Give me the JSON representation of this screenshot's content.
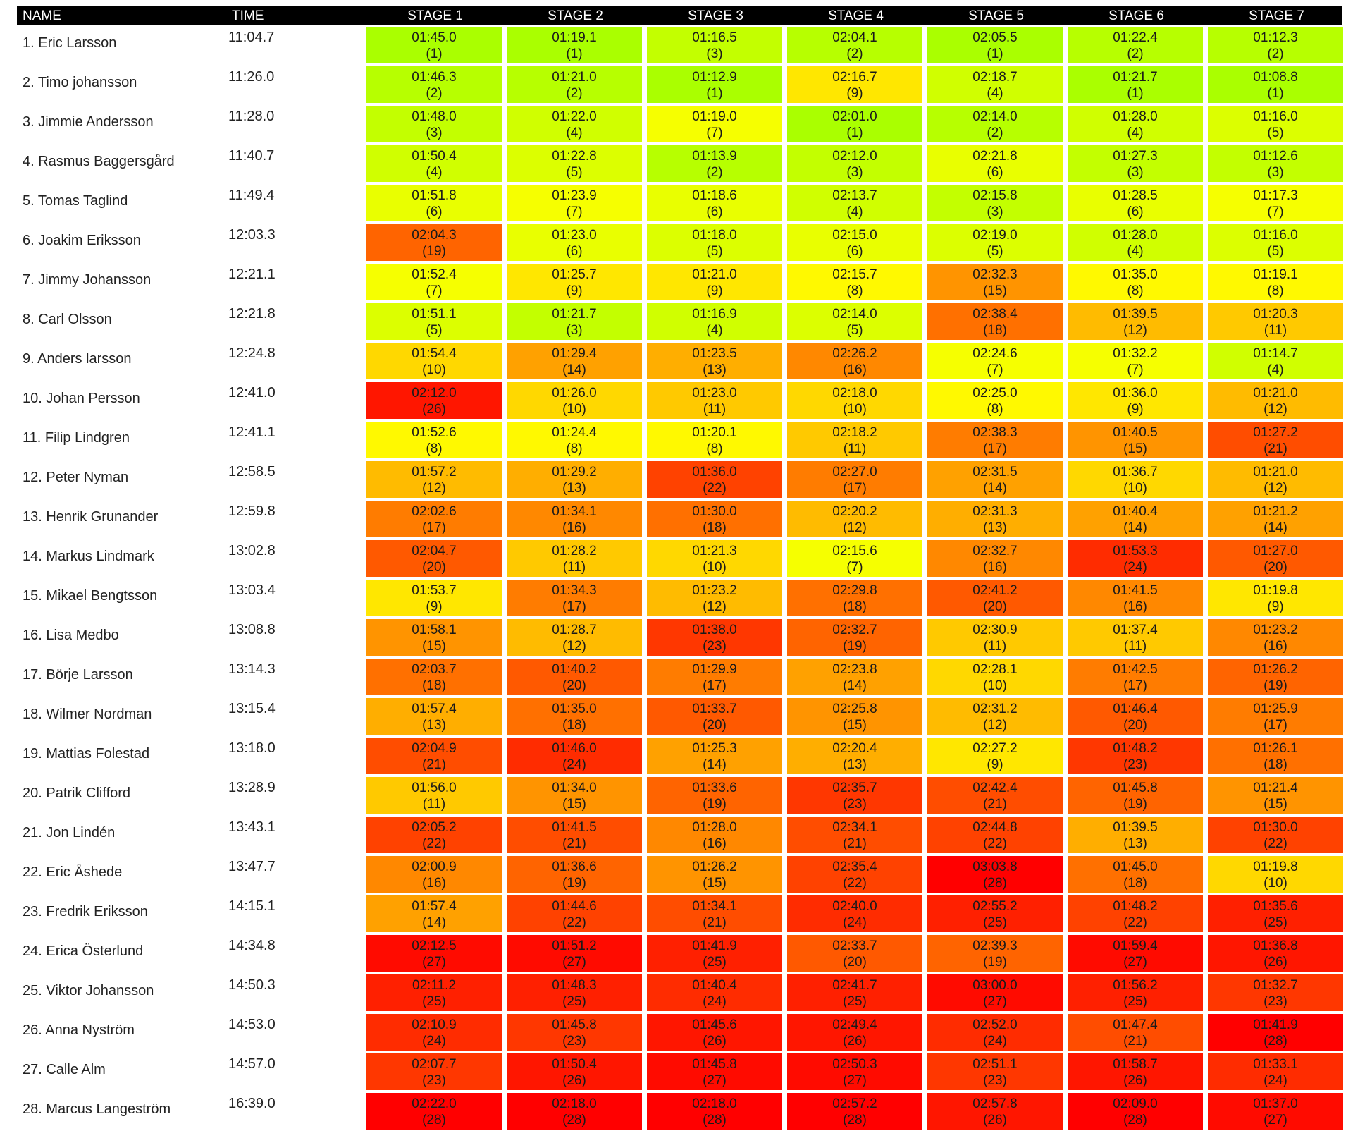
{
  "chart_data": {
    "type": "table",
    "columns": [
      "NAME",
      "TIME",
      "STAGE 1",
      "STAGE 2",
      "STAGE 3",
      "STAGE 4",
      "STAGE 5",
      "STAGE 6",
      "STAGE 7"
    ],
    "color_scale": {
      "best": "#aaff00",
      "mid": "#ffff00",
      "worst": "#ff0000"
    },
    "rows": [
      {
        "name": "1. Eric Larsson",
        "time": "11:04.7",
        "stages": [
          {
            "t": "01:45.0",
            "r": 1
          },
          {
            "t": "01:19.1",
            "r": 1
          },
          {
            "t": "01:16.5",
            "r": 3
          },
          {
            "t": "02:04.1",
            "r": 2
          },
          {
            "t": "02:05.5",
            "r": 1
          },
          {
            "t": "01:22.4",
            "r": 2
          },
          {
            "t": "01:12.3",
            "r": 2
          }
        ]
      },
      {
        "name": "2. Timo johansson",
        "time": "11:26.0",
        "stages": [
          {
            "t": "01:46.3",
            "r": 2
          },
          {
            "t": "01:21.0",
            "r": 2
          },
          {
            "t": "01:12.9",
            "r": 1
          },
          {
            "t": "02:16.7",
            "r": 9
          },
          {
            "t": "02:18.7",
            "r": 4
          },
          {
            "t": "01:21.7",
            "r": 1
          },
          {
            "t": "01:08.8",
            "r": 1
          }
        ]
      },
      {
        "name": "3. Jimmie Andersson",
        "time": "11:28.0",
        "stages": [
          {
            "t": "01:48.0",
            "r": 3
          },
          {
            "t": "01:22.0",
            "r": 4
          },
          {
            "t": "01:19.0",
            "r": 7
          },
          {
            "t": "02:01.0",
            "r": 1
          },
          {
            "t": "02:14.0",
            "r": 2
          },
          {
            "t": "01:28.0",
            "r": 4
          },
          {
            "t": "01:16.0",
            "r": 5
          }
        ]
      },
      {
        "name": "4. Rasmus Baggersgård",
        "time": "11:40.7",
        "stages": [
          {
            "t": "01:50.4",
            "r": 4
          },
          {
            "t": "01:22.8",
            "r": 5
          },
          {
            "t": "01:13.9",
            "r": 2
          },
          {
            "t": "02:12.0",
            "r": 3
          },
          {
            "t": "02:21.8",
            "r": 6
          },
          {
            "t": "01:27.3",
            "r": 3
          },
          {
            "t": "01:12.6",
            "r": 3
          }
        ]
      },
      {
        "name": "5. Tomas Taglind",
        "time": "11:49.4",
        "stages": [
          {
            "t": "01:51.8",
            "r": 6
          },
          {
            "t": "01:23.9",
            "r": 7
          },
          {
            "t": "01:18.6",
            "r": 6
          },
          {
            "t": "02:13.7",
            "r": 4
          },
          {
            "t": "02:15.8",
            "r": 3
          },
          {
            "t": "01:28.5",
            "r": 6
          },
          {
            "t": "01:17.3",
            "r": 7
          }
        ]
      },
      {
        "name": "6. Joakim Eriksson",
        "time": "12:03.3",
        "stages": [
          {
            "t": "02:04.3",
            "r": 19
          },
          {
            "t": "01:23.0",
            "r": 6
          },
          {
            "t": "01:18.0",
            "r": 5
          },
          {
            "t": "02:15.0",
            "r": 6
          },
          {
            "t": "02:19.0",
            "r": 5
          },
          {
            "t": "01:28.0",
            "r": 4
          },
          {
            "t": "01:16.0",
            "r": 5
          }
        ]
      },
      {
        "name": "7. Jimmy Johansson",
        "time": "12:21.1",
        "stages": [
          {
            "t": "01:52.4",
            "r": 7
          },
          {
            "t": "01:25.7",
            "r": 9
          },
          {
            "t": "01:21.0",
            "r": 9
          },
          {
            "t": "02:15.7",
            "r": 8
          },
          {
            "t": "02:32.3",
            "r": 15
          },
          {
            "t": "01:35.0",
            "r": 8
          },
          {
            "t": "01:19.1",
            "r": 8
          }
        ]
      },
      {
        "name": "8. Carl Olsson",
        "time": "12:21.8",
        "stages": [
          {
            "t": "01:51.1",
            "r": 5
          },
          {
            "t": "01:21.7",
            "r": 3
          },
          {
            "t": "01:16.9",
            "r": 4
          },
          {
            "t": "02:14.0",
            "r": 5
          },
          {
            "t": "02:38.4",
            "r": 18
          },
          {
            "t": "01:39.5",
            "r": 12
          },
          {
            "t": "01:20.3",
            "r": 11
          }
        ]
      },
      {
        "name": "9. Anders larsson",
        "time": "12:24.8",
        "stages": [
          {
            "t": "01:54.4",
            "r": 10
          },
          {
            "t": "01:29.4",
            "r": 14
          },
          {
            "t": "01:23.5",
            "r": 13
          },
          {
            "t": "02:26.2",
            "r": 16
          },
          {
            "t": "02:24.6",
            "r": 7
          },
          {
            "t": "01:32.2",
            "r": 7
          },
          {
            "t": "01:14.7",
            "r": 4
          }
        ]
      },
      {
        "name": "10. Johan Persson",
        "time": "12:41.0",
        "stages": [
          {
            "t": "02:12.0",
            "r": 26
          },
          {
            "t": "01:26.0",
            "r": 10
          },
          {
            "t": "01:23.0",
            "r": 11
          },
          {
            "t": "02:18.0",
            "r": 10
          },
          {
            "t": "02:25.0",
            "r": 8
          },
          {
            "t": "01:36.0",
            "r": 9
          },
          {
            "t": "01:21.0",
            "r": 12
          }
        ]
      },
      {
        "name": "11. Filip Lindgren",
        "time": "12:41.1",
        "stages": [
          {
            "t": "01:52.6",
            "r": 8
          },
          {
            "t": "01:24.4",
            "r": 8
          },
          {
            "t": "01:20.1",
            "r": 8
          },
          {
            "t": "02:18.2",
            "r": 11
          },
          {
            "t": "02:38.3",
            "r": 17
          },
          {
            "t": "01:40.5",
            "r": 15
          },
          {
            "t": "01:27.2",
            "r": 21
          }
        ]
      },
      {
        "name": "12. Peter Nyman",
        "time": "12:58.5",
        "stages": [
          {
            "t": "01:57.2",
            "r": 12
          },
          {
            "t": "01:29.2",
            "r": 13
          },
          {
            "t": "01:36.0",
            "r": 22
          },
          {
            "t": "02:27.0",
            "r": 17
          },
          {
            "t": "02:31.5",
            "r": 14
          },
          {
            "t": "01:36.7",
            "r": 10
          },
          {
            "t": "01:21.0",
            "r": 12
          }
        ]
      },
      {
        "name": "13. Henrik Grunander",
        "time": "12:59.8",
        "stages": [
          {
            "t": "02:02.6",
            "r": 17
          },
          {
            "t": "01:34.1",
            "r": 16
          },
          {
            "t": "01:30.0",
            "r": 18
          },
          {
            "t": "02:20.2",
            "r": 12
          },
          {
            "t": "02:31.3",
            "r": 13
          },
          {
            "t": "01:40.4",
            "r": 14
          },
          {
            "t": "01:21.2",
            "r": 14
          }
        ]
      },
      {
        "name": "14. Markus Lindmark",
        "time": "13:02.8",
        "stages": [
          {
            "t": "02:04.7",
            "r": 20
          },
          {
            "t": "01:28.2",
            "r": 11
          },
          {
            "t": "01:21.3",
            "r": 10
          },
          {
            "t": "02:15.6",
            "r": 7
          },
          {
            "t": "02:32.7",
            "r": 16
          },
          {
            "t": "01:53.3",
            "r": 24
          },
          {
            "t": "01:27.0",
            "r": 20
          }
        ]
      },
      {
        "name": "15. Mikael Bengtsson",
        "time": "13:03.4",
        "stages": [
          {
            "t": "01:53.7",
            "r": 9
          },
          {
            "t": "01:34.3",
            "r": 17
          },
          {
            "t": "01:23.2",
            "r": 12
          },
          {
            "t": "02:29.8",
            "r": 18
          },
          {
            "t": "02:41.2",
            "r": 20
          },
          {
            "t": "01:41.5",
            "r": 16
          },
          {
            "t": "01:19.8",
            "r": 9
          }
        ]
      },
      {
        "name": "16. Lisa Medbo",
        "time": "13:08.8",
        "stages": [
          {
            "t": "01:58.1",
            "r": 15
          },
          {
            "t": "01:28.7",
            "r": 12
          },
          {
            "t": "01:38.0",
            "r": 23
          },
          {
            "t": "02:32.7",
            "r": 19
          },
          {
            "t": "02:30.9",
            "r": 11
          },
          {
            "t": "01:37.4",
            "r": 11
          },
          {
            "t": "01:23.2",
            "r": 16
          }
        ]
      },
      {
        "name": "17. Börje Larsson",
        "time": "13:14.3",
        "stages": [
          {
            "t": "02:03.7",
            "r": 18
          },
          {
            "t": "01:40.2",
            "r": 20
          },
          {
            "t": "01:29.9",
            "r": 17
          },
          {
            "t": "02:23.8",
            "r": 14
          },
          {
            "t": "02:28.1",
            "r": 10
          },
          {
            "t": "01:42.5",
            "r": 17
          },
          {
            "t": "01:26.2",
            "r": 19
          }
        ]
      },
      {
        "name": "18. Wilmer Nordman",
        "time": "13:15.4",
        "stages": [
          {
            "t": "01:57.4",
            "r": 13
          },
          {
            "t": "01:35.0",
            "r": 18
          },
          {
            "t": "01:33.7",
            "r": 20
          },
          {
            "t": "02:25.8",
            "r": 15
          },
          {
            "t": "02:31.2",
            "r": 12
          },
          {
            "t": "01:46.4",
            "r": 20
          },
          {
            "t": "01:25.9",
            "r": 17
          }
        ]
      },
      {
        "name": "19. Mattias Folestad",
        "time": "13:18.0",
        "stages": [
          {
            "t": "02:04.9",
            "r": 21
          },
          {
            "t": "01:46.0",
            "r": 24
          },
          {
            "t": "01:25.3",
            "r": 14
          },
          {
            "t": "02:20.4",
            "r": 13
          },
          {
            "t": "02:27.2",
            "r": 9
          },
          {
            "t": "01:48.2",
            "r": 23
          },
          {
            "t": "01:26.1",
            "r": 18
          }
        ]
      },
      {
        "name": "20. Patrik  Clifford",
        "time": "13:28.9",
        "stages": [
          {
            "t": "01:56.0",
            "r": 11
          },
          {
            "t": "01:34.0",
            "r": 15
          },
          {
            "t": "01:33.6",
            "r": 19
          },
          {
            "t": "02:35.7",
            "r": 23
          },
          {
            "t": "02:42.4",
            "r": 21
          },
          {
            "t": "01:45.8",
            "r": 19
          },
          {
            "t": "01:21.4",
            "r": 15
          }
        ]
      },
      {
        "name": "21. Jon Lindén",
        "time": "13:43.1",
        "stages": [
          {
            "t": "02:05.2",
            "r": 22
          },
          {
            "t": "01:41.5",
            "r": 21
          },
          {
            "t": "01:28.0",
            "r": 16
          },
          {
            "t": "02:34.1",
            "r": 21
          },
          {
            "t": "02:44.8",
            "r": 22
          },
          {
            "t": "01:39.5",
            "r": 13
          },
          {
            "t": "01:30.0",
            "r": 22
          }
        ]
      },
      {
        "name": "22. Eric Åshede",
        "time": "13:47.7",
        "stages": [
          {
            "t": "02:00.9",
            "r": 16
          },
          {
            "t": "01:36.6",
            "r": 19
          },
          {
            "t": "01:26.2",
            "r": 15
          },
          {
            "t": "02:35.4",
            "r": 22
          },
          {
            "t": "03:03.8",
            "r": 28
          },
          {
            "t": "01:45.0",
            "r": 18
          },
          {
            "t": "01:19.8",
            "r": 10
          }
        ]
      },
      {
        "name": "23. Fredrik Eriksson",
        "time": "14:15.1",
        "stages": [
          {
            "t": "01:57.4",
            "r": 14
          },
          {
            "t": "01:44.6",
            "r": 22
          },
          {
            "t": "01:34.1",
            "r": 21
          },
          {
            "t": "02:40.0",
            "r": 24
          },
          {
            "t": "02:55.2",
            "r": 25
          },
          {
            "t": "01:48.2",
            "r": 22
          },
          {
            "t": "01:35.6",
            "r": 25
          }
        ]
      },
      {
        "name": "24. Erica Österlund",
        "time": "14:34.8",
        "stages": [
          {
            "t": "02:12.5",
            "r": 27
          },
          {
            "t": "01:51.2",
            "r": 27
          },
          {
            "t": "01:41.9",
            "r": 25
          },
          {
            "t": "02:33.7",
            "r": 20
          },
          {
            "t": "02:39.3",
            "r": 19
          },
          {
            "t": "01:59.4",
            "r": 27
          },
          {
            "t": "01:36.8",
            "r": 26
          }
        ]
      },
      {
        "name": "25. Viktor Johansson",
        "time": "14:50.3",
        "stages": [
          {
            "t": "02:11.2",
            "r": 25
          },
          {
            "t": "01:48.3",
            "r": 25
          },
          {
            "t": "01:40.4",
            "r": 24
          },
          {
            "t": "02:41.7",
            "r": 25
          },
          {
            "t": "03:00.0",
            "r": 27
          },
          {
            "t": "01:56.2",
            "r": 25
          },
          {
            "t": "01:32.7",
            "r": 23
          }
        ]
      },
      {
        "name": "26. Anna Nyström",
        "time": "14:53.0",
        "stages": [
          {
            "t": "02:10.9",
            "r": 24
          },
          {
            "t": "01:45.8",
            "r": 23
          },
          {
            "t": "01:45.6",
            "r": 26
          },
          {
            "t": "02:49.4",
            "r": 26
          },
          {
            "t": "02:52.0",
            "r": 24
          },
          {
            "t": "01:47.4",
            "r": 21
          },
          {
            "t": "01:41.9",
            "r": 28
          }
        ]
      },
      {
        "name": "27. Calle Alm",
        "time": "14:57.0",
        "stages": [
          {
            "t": "02:07.7",
            "r": 23
          },
          {
            "t": "01:50.4",
            "r": 26
          },
          {
            "t": "01:45.8",
            "r": 27
          },
          {
            "t": "02:50.3",
            "r": 27
          },
          {
            "t": "02:51.1",
            "r": 23
          },
          {
            "t": "01:58.7",
            "r": 26
          },
          {
            "t": "01:33.1",
            "r": 24
          }
        ]
      },
      {
        "name": "28. Marcus Langeström",
        "time": "16:39.0",
        "stages": [
          {
            "t": "02:22.0",
            "r": 28
          },
          {
            "t": "02:18.0",
            "r": 28
          },
          {
            "t": "02:18.0",
            "r": 28
          },
          {
            "t": "02:57.2",
            "r": 28
          },
          {
            "t": "02:57.8",
            "r": 26
          },
          {
            "t": "02:09.0",
            "r": 28
          },
          {
            "t": "01:37.0",
            "r": 27
          }
        ]
      }
    ]
  }
}
